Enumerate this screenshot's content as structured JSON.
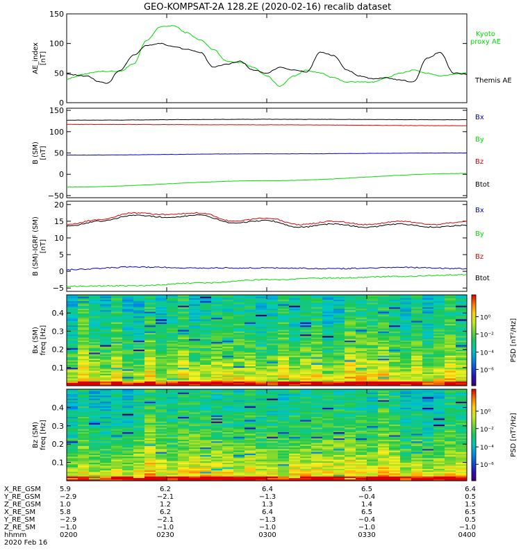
{
  "title": "GEO-KOMPSAT-2A 128.2E (2020-02-16) recalib dataset",
  "time_ticks": [
    "0200",
    "0230",
    "0300",
    "0330",
    "0400"
  ],
  "date_label": "2020 Feb 16",
  "colors": {
    "black": "#000000",
    "green": "#00dd00",
    "red": "#dd0000",
    "blue": "#0000cc"
  },
  "chart_data": [
    {
      "type": "line",
      "name": "ae",
      "ylabel": [
        "AE_index",
        "[nT]"
      ],
      "ylim": [
        0,
        150
      ],
      "yticks": [
        0,
        50,
        100,
        150
      ],
      "x_range": [
        "02:00",
        "04:00"
      ],
      "legend": [
        {
          "label": "Kyoto",
          "color": "#00dd00"
        },
        {
          "label": "proxy AE",
          "color": "#00dd00"
        },
        {
          "label": "Themis AE",
          "color": "#000000"
        }
      ],
      "series": [
        {
          "name": "Kyoto",
          "color": "#00dd00",
          "x_minutes": [
            0,
            5,
            10,
            16,
            20,
            24,
            28,
            32,
            36,
            40,
            44,
            48,
            52,
            56,
            60,
            64,
            68,
            72,
            76,
            80,
            84,
            88,
            92,
            96,
            100,
            104,
            108,
            112,
            116,
            120
          ],
          "y": [
            40,
            48,
            53,
            53,
            65,
            105,
            128,
            130,
            118,
            106,
            90,
            70,
            68,
            60,
            45,
            28,
            45,
            55,
            50,
            42,
            35,
            35,
            35,
            42,
            50,
            55,
            50,
            45,
            48,
            50
          ]
        },
        {
          "name": "Themis AE",
          "color": "#000000",
          "x_minutes": [
            0,
            6,
            10,
            12,
            16,
            20,
            24,
            28,
            32,
            36,
            40,
            44,
            48,
            52,
            56,
            60,
            64,
            68,
            72,
            76,
            80,
            84,
            88,
            92,
            96,
            100,
            104,
            108,
            112,
            116,
            120
          ],
          "y": [
            48,
            45,
            35,
            32,
            55,
            80,
            97,
            100,
            95,
            90,
            85,
            60,
            65,
            70,
            55,
            50,
            60,
            55,
            52,
            85,
            80,
            55,
            45,
            40,
            42,
            38,
            35,
            75,
            85,
            50,
            48
          ]
        }
      ]
    },
    {
      "type": "line",
      "name": "b-sm",
      "ylabel": [
        "B (SM)",
        "[nT]"
      ],
      "ylim": [
        -55,
        155
      ],
      "yticks": [
        -50,
        0,
        50,
        100,
        150
      ],
      "legend": [
        {
          "label": "Bx",
          "color": "#0000cc"
        },
        {
          "label": "By",
          "color": "#00dd00"
        },
        {
          "label": "Bz",
          "color": "#dd0000"
        },
        {
          "label": "Btot",
          "color": "#000000"
        }
      ],
      "series": [
        {
          "name": "Btot",
          "color": "#000000",
          "x_minutes": [
            0,
            60,
            120
          ],
          "y": [
            127,
            129,
            128
          ]
        },
        {
          "name": "Bz",
          "color": "#dd0000",
          "x_minutes": [
            0,
            60,
            120
          ],
          "y": [
            117,
            116,
            114
          ]
        },
        {
          "name": "Bx",
          "color": "#0000cc",
          "x_minutes": [
            0,
            60,
            120
          ],
          "y": [
            45,
            48,
            50
          ]
        },
        {
          "name": "By",
          "color": "#00dd00",
          "x_minutes": [
            0,
            60,
            120
          ],
          "y": [
            -30,
            -15,
            2
          ]
        }
      ]
    },
    {
      "type": "line",
      "name": "b-minus-igrf",
      "ylabel": [
        "B (SM)-IGRF (SM)",
        "[nT]"
      ],
      "ylim": [
        -6,
        21
      ],
      "yticks": [
        -5,
        0,
        5,
        10,
        15,
        20
      ],
      "legend": [
        {
          "label": "Bx",
          "color": "#0000cc"
        },
        {
          "label": "By",
          "color": "#00dd00"
        },
        {
          "label": "Bz",
          "color": "#dd0000"
        },
        {
          "label": "Btot",
          "color": "#000000"
        }
      ],
      "series": [
        {
          "name": "Bz",
          "color": "#dd0000",
          "x_minutes": [
            0,
            10,
            20,
            30,
            40,
            50,
            60,
            70,
            80,
            90,
            100,
            110,
            120
          ],
          "y": [
            14,
            15.5,
            17.5,
            17,
            17.5,
            15,
            16,
            14,
            15,
            14,
            15,
            14,
            15
          ]
        },
        {
          "name": "Btot",
          "color": "#000000",
          "x_minutes": [
            0,
            10,
            20,
            30,
            40,
            50,
            60,
            70,
            80,
            90,
            100,
            110,
            120
          ],
          "y": [
            13.5,
            15,
            16.8,
            16.2,
            16.8,
            14.5,
            15.2,
            13.2,
            14.2,
            13.2,
            14.2,
            13.2,
            13.8
          ]
        },
        {
          "name": "Bx",
          "color": "#0000cc",
          "x_minutes": [
            0,
            20,
            40,
            60,
            80,
            100,
            120
          ],
          "y": [
            0.5,
            1.3,
            1,
            1,
            0.8,
            1.2,
            0.8
          ]
        },
        {
          "name": "By",
          "color": "#00dd00",
          "x_minutes": [
            0,
            20,
            40,
            60,
            80,
            100,
            120
          ],
          "y": [
            -4.5,
            -4.3,
            -3.5,
            -2.5,
            -2,
            -1.5,
            -1
          ]
        }
      ]
    },
    {
      "type": "heatmap",
      "name": "bx-spectrogram",
      "ylabel": [
        "Bx (SM)",
        "freq [Hz]"
      ],
      "ylim": [
        0,
        0.5
      ],
      "yticks": [
        0.1,
        0.2,
        0.3,
        0.4
      ],
      "colorbar": {
        "label": "PSD [nT²/Hz]",
        "ticks": [
          "10⁰",
          "10⁻²",
          "10⁻⁴",
          "10⁻⁶"
        ]
      }
    },
    {
      "type": "heatmap",
      "name": "bz-spectrogram",
      "ylabel": [
        "Bz (SM)",
        "freq [Hz]"
      ],
      "ylim": [
        0,
        0.5
      ],
      "yticks": [
        0.1,
        0.2,
        0.3,
        0.4
      ],
      "colorbar": {
        "label": "PSD [nT²/Hz]",
        "ticks": [
          "10⁰",
          "10⁻²",
          "10⁻⁴",
          "10⁻⁶"
        ]
      }
    }
  ],
  "ephemeris": [
    {
      "label": "X_RE_GSM",
      "values": [
        "5.9",
        "6.2",
        "6.4",
        "6.5",
        "6.4"
      ]
    },
    {
      "label": "Y_RE_GSM",
      "values": [
        "-2.9",
        "-2.1",
        "-1.3",
        "-0.4",
        "0.5"
      ]
    },
    {
      "label": "Z_RE_GSM",
      "values": [
        "1.0",
        "1.2",
        "1.3",
        "1.4",
        "1.5"
      ]
    },
    {
      "label": "X_RE_SM",
      "values": [
        "5.8",
        "6.2",
        "6.4",
        "6.5",
        "6.5"
      ]
    },
    {
      "label": "Y_RE_SM",
      "values": [
        "-2.9",
        "-2.1",
        "-1.3",
        "-0.4",
        "0.5"
      ]
    },
    {
      "label": "Z_RE_SM",
      "values": [
        "-1.0",
        "-1.0",
        "-1.0",
        "-1.0",
        "-1.0"
      ]
    },
    {
      "label": "hhmm",
      "values": [
        "0200",
        "0230",
        "0300",
        "0330",
        "0400"
      ]
    }
  ]
}
